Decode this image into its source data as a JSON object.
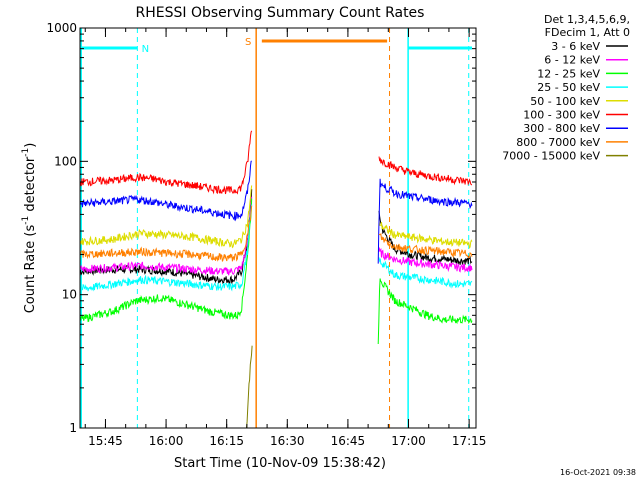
{
  "chart_data": {
    "type": "line",
    "title": "RHESSI Observing Summary Count Rates",
    "xlabel": "Start Time (10-Nov-09 15:38:42)",
    "ylabel": "Count Rate (s",
    "ylabel_sup1": "-1",
    "ylabel_mid": " detector",
    "ylabel_sup2": "-1",
    "ylabel_end": ")",
    "y_scale": "log",
    "ylim": [
      1,
      1000
    ],
    "xlim_minutes": [
      0,
      98
    ],
    "y_ticks": [
      {
        "value": 1,
        "label": "1"
      },
      {
        "value": 10,
        "label": "10"
      },
      {
        "value": 100,
        "label": "100"
      },
      {
        "value": 1000,
        "label": "1000"
      }
    ],
    "x_ticks": [
      {
        "minute": 6.3,
        "label": "15:45"
      },
      {
        "minute": 21.3,
        "label": "16:00"
      },
      {
        "minute": 36.3,
        "label": "16:15"
      },
      {
        "minute": 51.3,
        "label": "16:30"
      },
      {
        "minute": 66.3,
        "label": "16:45"
      },
      {
        "minute": 81.3,
        "label": "17:00"
      },
      {
        "minute": 96.3,
        "label": "17:15"
      }
    ],
    "legend_header": [
      "Det 1,3,4,5,6,9,",
      "FDecim 1, Att 0"
    ],
    "legend_position": "right",
    "series": [
      {
        "name": "3 - 6 keV",
        "color": "#000000",
        "segments": [
          {
            "x": [
              0,
              8,
              15,
              22,
              28,
              34,
              38,
              40,
              41.5,
              42.5
            ],
            "y": [
              15,
              15.5,
              15.5,
              15,
              14,
              13,
              13,
              15,
              25,
              60
            ]
          },
          {
            "x": [
              74,
              75,
              78,
              82,
              86,
              90,
              94,
              97
            ],
            "y": [
              40,
              30,
              22,
              20,
              19,
              18.5,
              18,
              18
            ]
          }
        ]
      },
      {
        "name": "6 - 12 keV",
        "color": "#ff00ff",
        "segments": [
          {
            "x": [
              0,
              8,
              15,
              22,
              28,
              34,
              38,
              40,
              41.5,
              42.5
            ],
            "y": [
              15.5,
              16,
              16.5,
              16,
              15.5,
              15,
              15,
              16,
              25,
              55
            ]
          },
          {
            "x": [
              74,
              75,
              78,
              82,
              86,
              90,
              94,
              97
            ],
            "y": [
              21,
              20,
              18.5,
              17.5,
              17,
              16.5,
              16,
              16
            ]
          }
        ]
      },
      {
        "name": "12 - 25 keV",
        "color": "#00ff00",
        "segments": [
          {
            "x": [
              0,
              8,
              14,
              20,
              26,
              32,
              37,
              39,
              40,
              41.5,
              42.5
            ],
            "y": [
              6.5,
              7.5,
              9,
              9.5,
              8.5,
              7.5,
              7,
              7,
              8,
              20,
              50
            ]
          },
          {
            "x": [
              73.8,
              74.2,
              75,
              78,
              82,
              86,
              90,
              94,
              97
            ],
            "y": [
              4,
              14,
              12,
              9,
              8,
              7,
              6.5,
              6.5,
              6.5
            ]
          }
        ]
      },
      {
        "name": "25 - 50 keV",
        "color": "#00ffff",
        "segments": [
          {
            "x": [
              0,
              8,
              15,
              22,
              28,
              34,
              38,
              40,
              41.5,
              42.5
            ],
            "y": [
              11,
              12,
              13,
              12.5,
              12,
              11.5,
              11.5,
              12,
              22,
              50
            ]
          },
          {
            "x": [
              74,
              75,
              78,
              82,
              86,
              90,
              94,
              97
            ],
            "y": [
              18,
              17,
              14,
              13.5,
              13,
              12.5,
              12,
              12
            ]
          }
        ]
      },
      {
        "name": "50 - 100 keV",
        "color": "#dddd00",
        "segments": [
          {
            "x": [
              0,
              8,
              15,
              22,
              28,
              34,
              38,
              40,
              41.5,
              42.5
            ],
            "y": [
              25,
              26,
              29,
              28,
              27,
              25,
              24,
              26,
              35,
              65
            ]
          },
          {
            "x": [
              74,
              75,
              78,
              82,
              86,
              90,
              94,
              97
            ],
            "y": [
              35,
              32,
              28,
              27,
              26,
              25,
              24.5,
              24
            ]
          }
        ]
      },
      {
        "name": "100 - 300 keV",
        "color": "#ff0000",
        "segments": [
          {
            "x": [
              0,
              8,
              14,
              18,
              22,
              28,
              34,
              38,
              40,
              41.5,
              42.5
            ],
            "y": [
              70,
              72,
              76,
              74,
              70,
              66,
              62,
              60,
              64,
              100,
              180
            ]
          },
          {
            "x": [
              74,
              75,
              78,
              82,
              86,
              90,
              94,
              97
            ],
            "y": [
              105,
              100,
              90,
              82,
              78,
              75,
              72,
              70
            ]
          }
        ]
      },
      {
        "name": "300 - 800 keV",
        "color": "#0000ff",
        "segments": [
          {
            "x": [
              0,
              8,
              14,
              18,
              22,
              28,
              34,
              38,
              40,
              41.5,
              42.5
            ],
            "y": [
              48,
              50,
              52,
              50,
              47,
              44,
              41,
              39,
              40,
              60,
              105
            ]
          },
          {
            "x": [
              73.8,
              74.2,
              75,
              78,
              82,
              86,
              90,
              94,
              97
            ],
            "y": [
              18,
              70,
              65,
              58,
              54,
              52,
              50,
              49,
              48
            ]
          }
        ]
      },
      {
        "name": "800 - 7000 keV",
        "color": "#ff8000",
        "segments": [
          {
            "x": [
              0,
              8,
              15,
              22,
              28,
              34,
              38,
              40,
              41.5,
              42.5
            ],
            "y": [
              20,
              20.5,
              21,
              20.5,
              20,
              19,
              19,
              20,
              28,
              45
            ]
          },
          {
            "x": [
              74,
              75,
              78,
              82,
              86,
              90,
              94,
              97
            ],
            "y": [
              28,
              26,
              23,
              22,
              21.5,
              21,
              20.5,
              20
            ]
          }
        ]
      },
      {
        "name": "7000 - 15000 keV",
        "color": "#808000",
        "segments": [
          {
            "x": [
              41.2,
              41.8,
              42.2,
              42.6
            ],
            "y": [
              1,
              2,
              3,
              4
            ]
          }
        ]
      }
    ],
    "flags": {
      "night_label": "N",
      "saa_label": "S",
      "night_color": "#00ffff",
      "saa_color": "#ff8000",
      "night_bars": [
        [
          0,
          14.2
        ],
        [
          81.2,
          97
        ]
      ],
      "saa_bar": [
        45,
        76
      ],
      "night_lines": [
        14.2,
        96.2
      ],
      "night_solid_lines": [
        0.3,
        81.2
      ],
      "saa_solid_line": 43.6,
      "saa_dashed_line": 76.6
    }
  },
  "footer": {
    "date": "16-Oct-2021 09:38"
  }
}
